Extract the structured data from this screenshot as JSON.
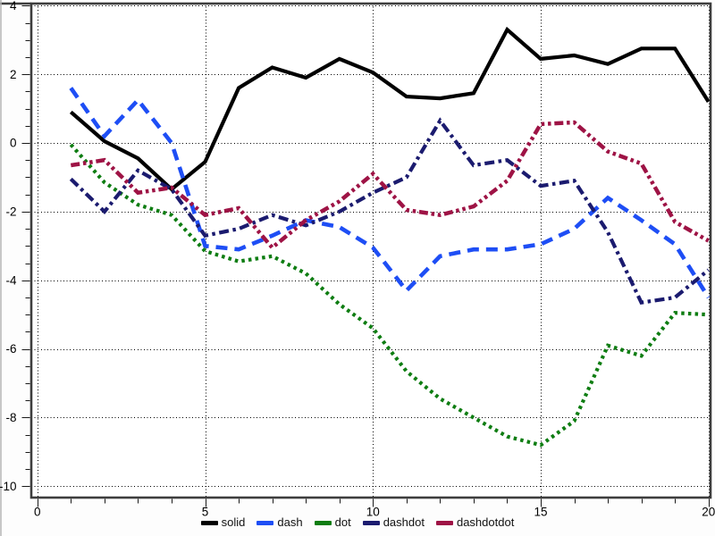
{
  "chart_data": {
    "type": "line",
    "title": "",
    "xlabel": "",
    "ylabel": "",
    "x": [
      1,
      2,
      3,
      4,
      5,
      6,
      7,
      8,
      9,
      10,
      11,
      12,
      13,
      14,
      15,
      16,
      17,
      18,
      19,
      20
    ],
    "series": [
      {
        "name": "solid",
        "style": "solid",
        "color": "#000000",
        "values": [
          0.9,
          0.05,
          -0.45,
          -1.35,
          -0.55,
          1.6,
          2.2,
          1.9,
          2.45,
          2.05,
          1.35,
          1.3,
          1.45,
          3.3,
          2.45,
          2.55,
          2.3,
          2.75,
          2.75,
          1.2
        ]
      },
      {
        "name": "dash",
        "style": "dash",
        "color": "#1e4ef5",
        "values": [
          1.6,
          0.2,
          1.25,
          0.0,
          -3.0,
          -3.1,
          -2.7,
          -2.25,
          -2.45,
          -3.05,
          -4.3,
          -3.3,
          -3.1,
          -3.1,
          -2.95,
          -2.5,
          -1.6,
          -2.25,
          -2.95,
          -4.5
        ]
      },
      {
        "name": "dot",
        "style": "dot",
        "color": "#0e7d12",
        "values": [
          -0.05,
          -1.15,
          -1.8,
          -2.1,
          -3.15,
          -3.45,
          -3.3,
          -3.8,
          -4.7,
          -5.4,
          -6.65,
          -7.45,
          -8.0,
          -8.55,
          -8.8,
          -8.1,
          -5.9,
          -6.2,
          -4.95,
          -5.0
        ]
      },
      {
        "name": "dashdot",
        "style": "dashdot",
        "color": "#1b1b6f",
        "values": [
          -1.05,
          -2.0,
          -0.8,
          -1.35,
          -2.7,
          -2.5,
          -2.1,
          -2.4,
          -2.0,
          -1.45,
          -1.0,
          0.65,
          -0.65,
          -0.5,
          -1.25,
          -1.1,
          -2.6,
          -4.65,
          -4.5,
          -3.7
        ]
      },
      {
        "name": "dashdotdot",
        "style": "dashdotdot",
        "color": "#9e1345",
        "values": [
          -0.65,
          -0.5,
          -1.45,
          -1.3,
          -2.1,
          -1.9,
          -3.05,
          -2.25,
          -1.7,
          -0.9,
          -1.95,
          -2.1,
          -1.85,
          -1.1,
          0.55,
          0.6,
          -0.25,
          -0.6,
          -2.3,
          -2.85
        ]
      }
    ],
    "xlim": [
      -0.18,
      20.06
    ],
    "ylim": [
      -10.33,
      4.06
    ],
    "x_major_ticks": [
      0,
      5,
      10,
      15,
      20
    ],
    "x_tick_labels": [
      "0",
      "5",
      "10",
      "15",
      "20"
    ],
    "x_minor_step": 1,
    "y_major_ticks": [
      4,
      2,
      0,
      -2,
      -4,
      -6,
      -8,
      -10
    ],
    "y_tick_labels": [
      "4",
      "2",
      "0",
      "-2",
      "-4",
      "-6",
      "-8",
      "-10"
    ],
    "y_minor_step": 0.5,
    "grid": "dotted lines on major ticks",
    "legend_position": "bottom-center",
    "legend_labels": [
      "solid",
      "dash",
      "dot",
      "dashdot",
      "dashdotdot"
    ]
  },
  "colors": {
    "frame": "#3d3d3d",
    "grid": "#000000",
    "tick": "#1a1a1a",
    "tick_label": "#000000",
    "legend_text": "#111111",
    "plot_bg": "#ffffff",
    "page_bg": "#fdfdfd",
    "window_edge": "#b5b5b5"
  }
}
